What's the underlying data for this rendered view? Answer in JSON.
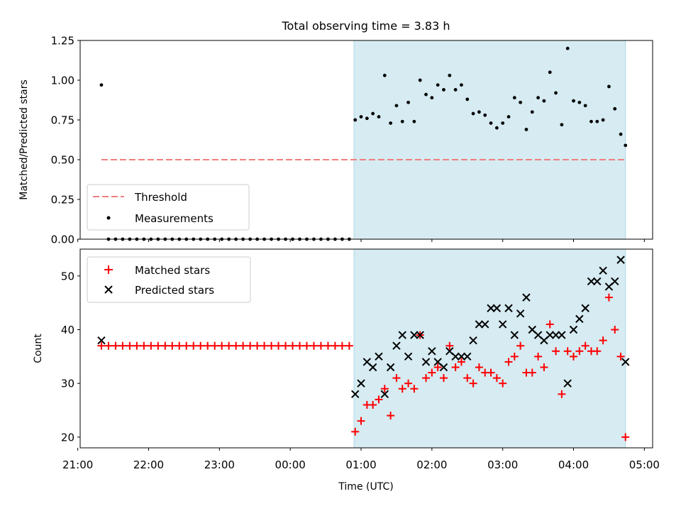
{
  "title": "Total observing time = 3.83 h",
  "colors": {
    "threshold": "#f08080",
    "measurements": "#000000",
    "matched": "#ff0000",
    "predicted": "#000000",
    "highlight": "#add8e6"
  },
  "chart_data": [
    {
      "type": "scatter",
      "panel": "top",
      "title": "Total observing time = 3.83 h",
      "xlabel": "",
      "ylabel": "Matched/Predicted stars",
      "xlim": [
        "21:02",
        "05:07"
      ],
      "ylim": [
        0,
        1.25
      ],
      "yticks": [
        0.0,
        0.25,
        0.5,
        0.75,
        1.0,
        1.25
      ],
      "ytick_labels": [
        "0.00",
        "0.25",
        "0.50",
        "0.75",
        "1.00",
        "1.25"
      ],
      "highlight_span": [
        "00:54",
        "04:44"
      ],
      "legend": {
        "placement": "lower-left",
        "entries": [
          "Threshold",
          "Measurements"
        ]
      },
      "threshold": {
        "name": "Threshold",
        "y": 0.5,
        "x_range": [
          "21:20",
          "04:44"
        ]
      },
      "series": [
        {
          "name": "Measurements",
          "x": [
            "21:20",
            "21:26",
            "21:32",
            "21:38",
            "21:44",
            "21:50",
            "21:56",
            "22:02",
            "22:08",
            "22:14",
            "22:20",
            "22:26",
            "22:32",
            "22:38",
            "22:44",
            "22:50",
            "22:56",
            "23:02",
            "23:08",
            "23:14",
            "23:20",
            "23:26",
            "23:32",
            "23:38",
            "23:44",
            "23:50",
            "23:56",
            "00:02",
            "00:08",
            "00:14",
            "00:20",
            "00:26",
            "00:32",
            "00:38",
            "00:44",
            "00:50",
            "00:55",
            "01:00",
            "01:05",
            "01:10",
            "01:15",
            "01:20",
            "01:25",
            "01:30",
            "01:35",
            "01:40",
            "01:45",
            "01:50",
            "01:55",
            "02:00",
            "02:05",
            "02:10",
            "02:15",
            "02:20",
            "02:25",
            "02:30",
            "02:35",
            "02:40",
            "02:45",
            "02:50",
            "02:55",
            "03:00",
            "03:05",
            "03:10",
            "03:15",
            "03:20",
            "03:25",
            "03:30",
            "03:35",
            "03:40",
            "03:45",
            "03:50",
            "03:55",
            "04:00",
            "04:05",
            "04:10",
            "04:15",
            "04:20",
            "04:25",
            "04:30",
            "04:35",
            "04:40",
            "04:44"
          ],
          "y": [
            0.97,
            0,
            0,
            0,
            0,
            0,
            0,
            0,
            0,
            0,
            0,
            0,
            0,
            0,
            0,
            0,
            0,
            0,
            0,
            0,
            0,
            0,
            0,
            0,
            0,
            0,
            0,
            0,
            0,
            0,
            0,
            0,
            0,
            0,
            0,
            0,
            0.75,
            0.77,
            0.76,
            0.79,
            0.77,
            1.03,
            0.73,
            0.84,
            0.74,
            0.86,
            0.74,
            1.0,
            0.91,
            0.89,
            0.97,
            0.94,
            1.03,
            0.94,
            0.97,
            0.88,
            0.79,
            0.8,
            0.78,
            0.73,
            0.7,
            0.73,
            0.77,
            0.89,
            0.86,
            0.69,
            0.8,
            0.89,
            0.87,
            1.05,
            0.92,
            0.72,
            1.2,
            0.87,
            0.86,
            0.84,
            0.74,
            0.74,
            0.75,
            0.96,
            0.82,
            0.66,
            0.59
          ]
        }
      ]
    },
    {
      "type": "scatter",
      "panel": "bottom",
      "xlabel": "Time (UTC)",
      "ylabel": "Count",
      "xlim": [
        "21:02",
        "05:07"
      ],
      "ylim": [
        18,
        55
      ],
      "xticks": [
        "21:00",
        "22:00",
        "23:00",
        "00:00",
        "01:00",
        "02:00",
        "03:00",
        "04:00",
        "05:00"
      ],
      "yticks": [
        20,
        30,
        40,
        50
      ],
      "ytick_labels": [
        "20",
        "30",
        "40",
        "50"
      ],
      "highlight_span": [
        "00:54",
        "04:44"
      ],
      "legend": {
        "placement": "upper-left",
        "entries": [
          "Matched stars",
          "Predicted stars"
        ]
      },
      "series": [
        {
          "name": "Matched stars",
          "marker": "plus",
          "x": [
            "21:20",
            "21:26",
            "21:32",
            "21:38",
            "21:44",
            "21:50",
            "21:56",
            "22:02",
            "22:08",
            "22:14",
            "22:20",
            "22:26",
            "22:32",
            "22:38",
            "22:44",
            "22:50",
            "22:56",
            "23:02",
            "23:08",
            "23:14",
            "23:20",
            "23:26",
            "23:32",
            "23:38",
            "23:44",
            "23:50",
            "23:56",
            "00:02",
            "00:08",
            "00:14",
            "00:20",
            "00:26",
            "00:32",
            "00:38",
            "00:44",
            "00:50",
            "00:55",
            "01:00",
            "01:05",
            "01:10",
            "01:15",
            "01:20",
            "01:25",
            "01:30",
            "01:35",
            "01:40",
            "01:45",
            "01:50",
            "01:55",
            "02:00",
            "02:05",
            "02:10",
            "02:15",
            "02:20",
            "02:25",
            "02:30",
            "02:35",
            "02:40",
            "02:45",
            "02:50",
            "02:55",
            "03:00",
            "03:05",
            "03:10",
            "03:15",
            "03:20",
            "03:25",
            "03:30",
            "03:35",
            "03:40",
            "03:45",
            "03:50",
            "03:55",
            "04:00",
            "04:05",
            "04:10",
            "04:15",
            "04:20",
            "04:25",
            "04:30",
            "04:35",
            "04:40",
            "04:44"
          ],
          "y": [
            37,
            37,
            37,
            37,
            37,
            37,
            37,
            37,
            37,
            37,
            37,
            37,
            37,
            37,
            37,
            37,
            37,
            37,
            37,
            37,
            37,
            37,
            37,
            37,
            37,
            37,
            37,
            37,
            37,
            37,
            37,
            37,
            37,
            37,
            37,
            37,
            21,
            23,
            26,
            26,
            27,
            29,
            24,
            31,
            29,
            30,
            29,
            39,
            31,
            32,
            33,
            31,
            37,
            33,
            34,
            31,
            30,
            33,
            32,
            32,
            31,
            30,
            34,
            35,
            37,
            32,
            32,
            35,
            33,
            41,
            36,
            28,
            36,
            35,
            36,
            37,
            36,
            36,
            38,
            46,
            40,
            35,
            20
          ]
        },
        {
          "name": "Predicted stars",
          "marker": "x",
          "x": [
            "21:20",
            "00:55",
            "01:00",
            "01:05",
            "01:10",
            "01:15",
            "01:20",
            "01:25",
            "01:30",
            "01:35",
            "01:40",
            "01:45",
            "01:50",
            "01:55",
            "02:00",
            "02:05",
            "02:10",
            "02:15",
            "02:20",
            "02:25",
            "02:30",
            "02:35",
            "02:40",
            "02:45",
            "02:50",
            "02:55",
            "03:00",
            "03:05",
            "03:10",
            "03:15",
            "03:20",
            "03:25",
            "03:30",
            "03:35",
            "03:40",
            "03:45",
            "03:50",
            "03:55",
            "04:00",
            "04:05",
            "04:10",
            "04:15",
            "04:20",
            "04:25",
            "04:30",
            "04:35",
            "04:40",
            "04:44"
          ],
          "y": [
            38,
            28,
            30,
            34,
            33,
            35,
            28,
            33,
            37,
            39,
            35,
            39,
            39,
            34,
            36,
            34,
            33,
            36,
            35,
            35,
            35,
            38,
            41,
            41,
            44,
            44,
            41,
            44,
            39,
            43,
            46,
            40,
            39,
            38,
            39,
            39,
            39,
            30,
            40,
            42,
            44,
            49,
            49,
            51,
            48,
            49,
            53,
            34
          ]
        }
      ]
    }
  ]
}
